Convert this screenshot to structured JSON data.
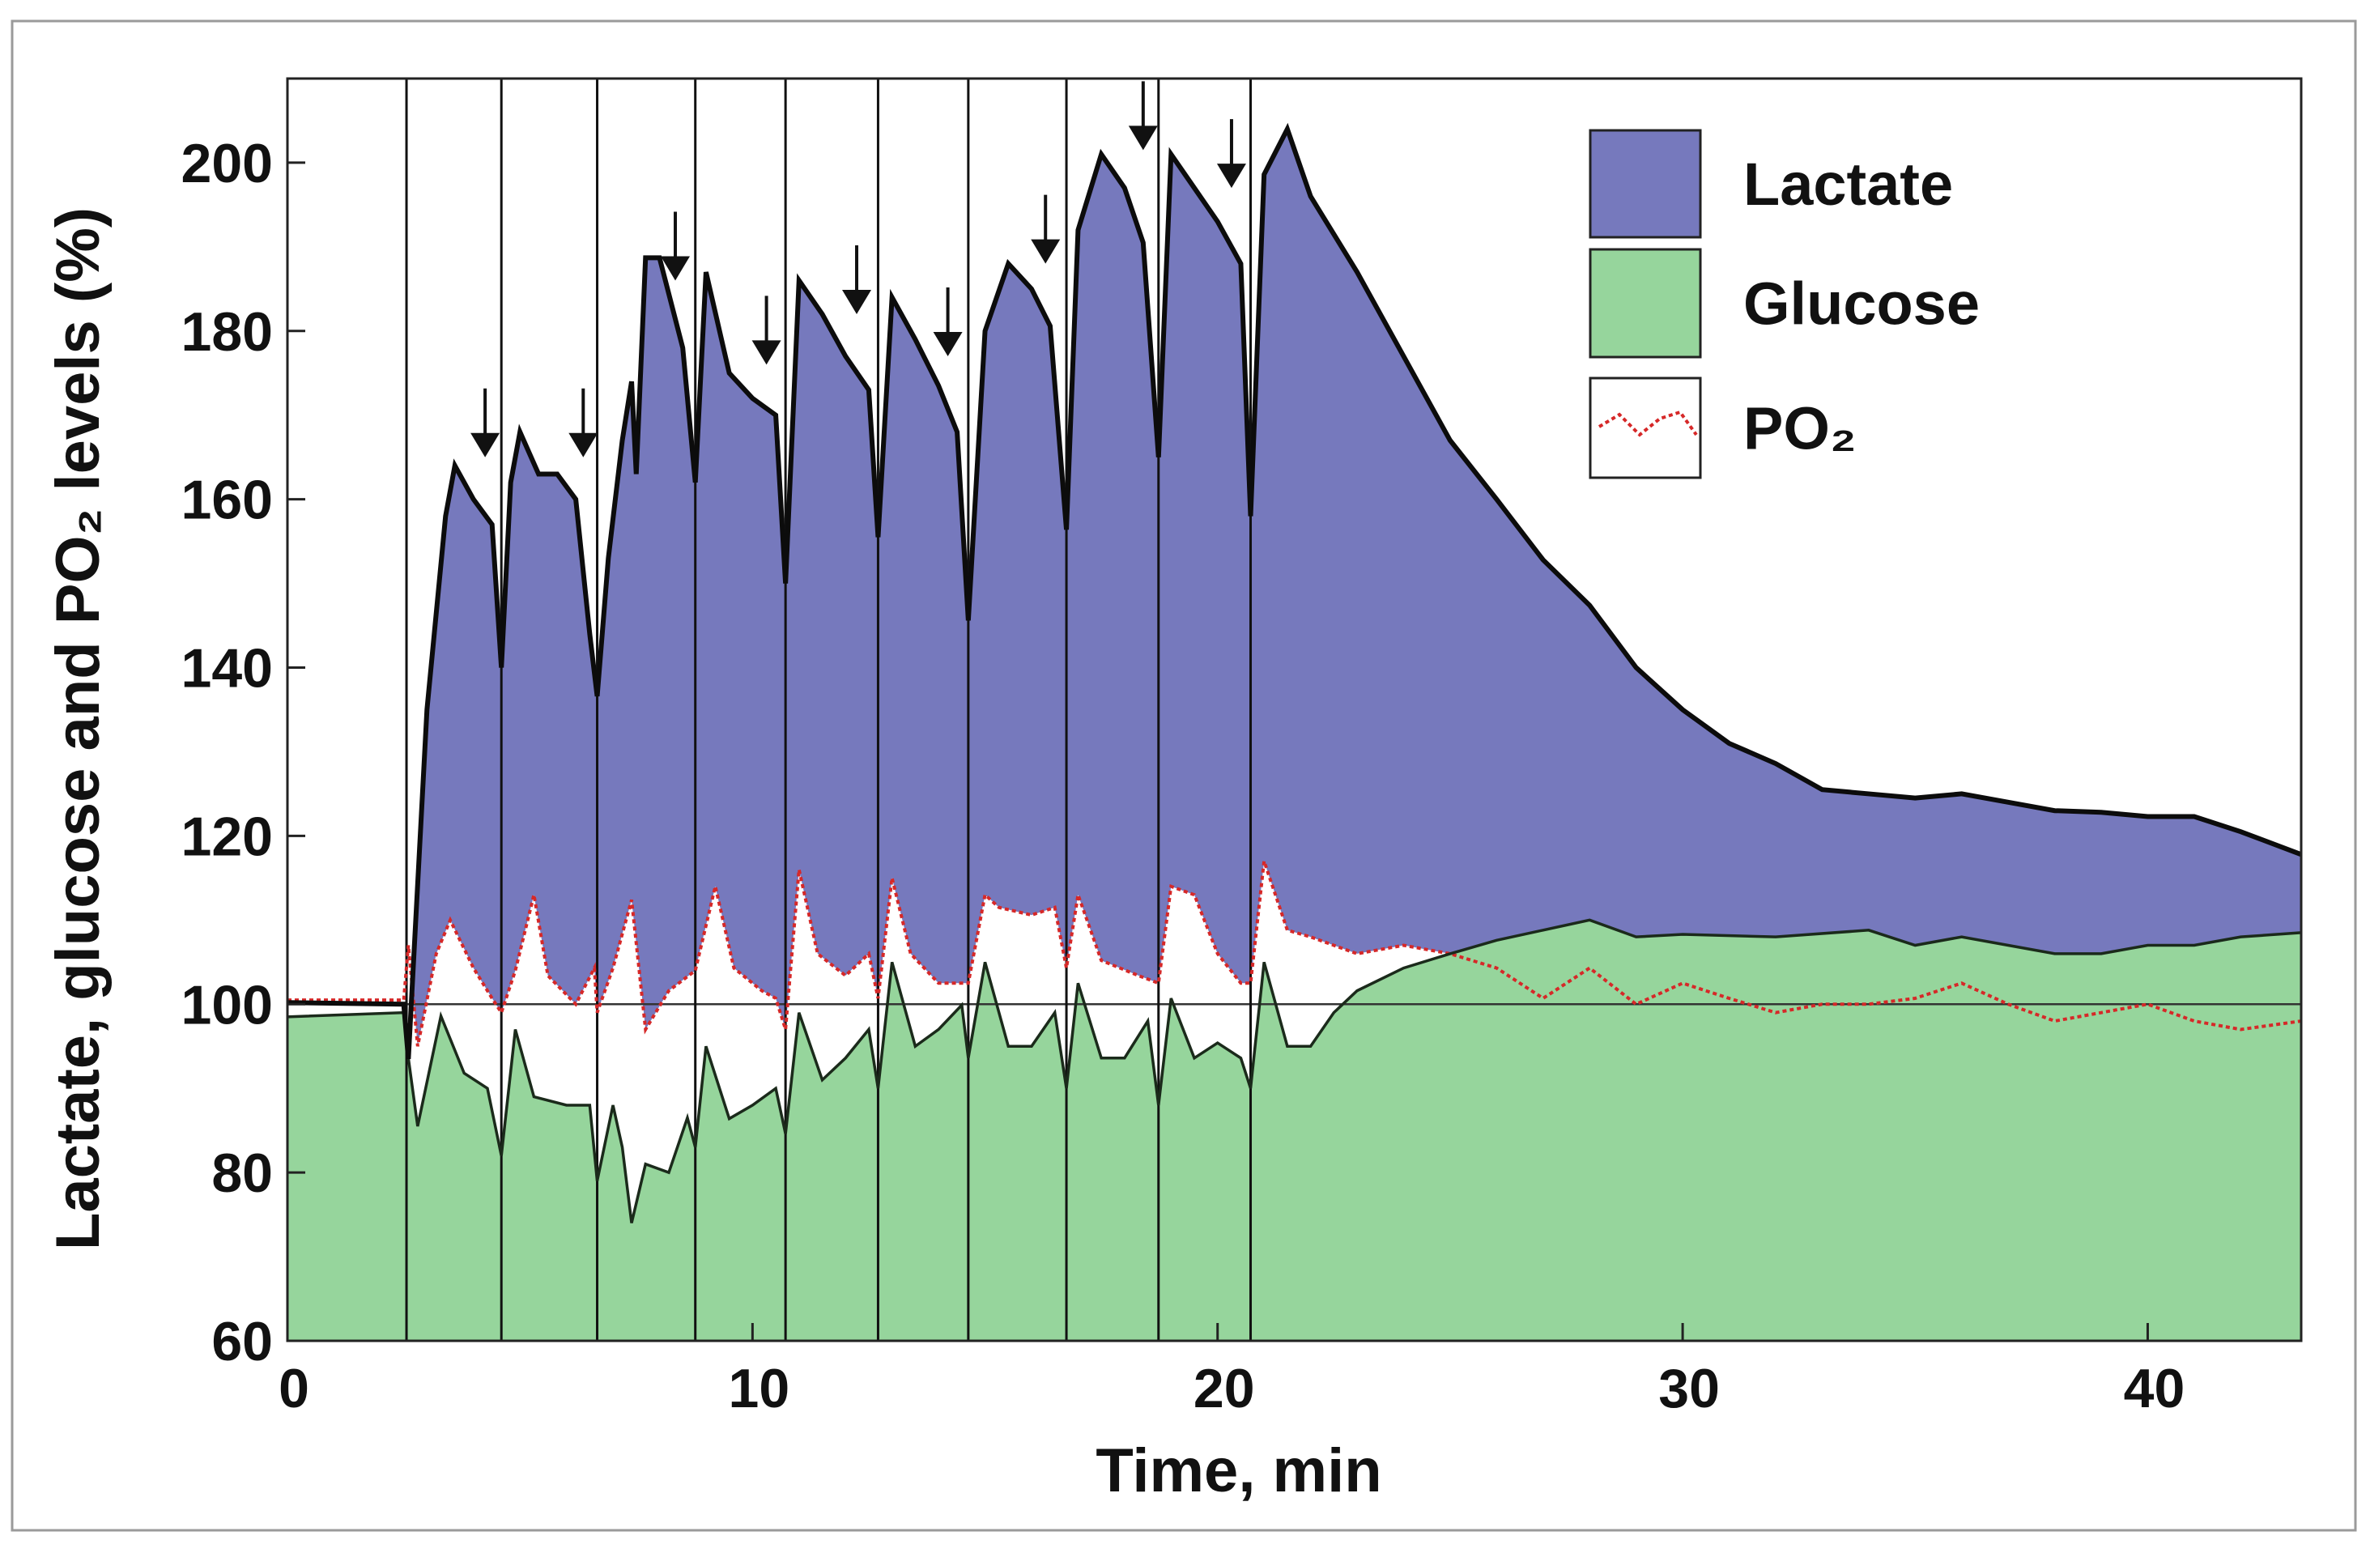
{
  "chart_data": {
    "type": "area",
    "title": "",
    "xlabel": "Time, min",
    "ylabel": "Lactate, glucose and PO₂ levels (%)",
    "xlim": [
      0,
      43.3
    ],
    "ylim": [
      60,
      210
    ],
    "xticks": [
      0,
      10,
      20,
      30,
      40
    ],
    "yticks": [
      60,
      80,
      100,
      120,
      140,
      160,
      180,
      200
    ],
    "reference_line": 100,
    "legend_position": "top-right",
    "colors": {
      "lactate": "#7679bd",
      "glucose": "#96d59c",
      "po2": "#d62828",
      "events": "#111111"
    },
    "legend": [
      {
        "key": "lactate",
        "label": "Lactate"
      },
      {
        "key": "glucose",
        "label": "Glucose"
      },
      {
        "key": "po2",
        "label": "PO₂"
      }
    ],
    "event_lines_min": [
      2.56,
      4.6,
      6.66,
      8.77,
      10.71,
      12.7,
      14.64,
      16.75,
      18.73,
      20.71
    ],
    "arrows": [
      {
        "x": 4.25,
        "y": 165
      },
      {
        "x": 6.36,
        "y": 165
      },
      {
        "x": 8.34,
        "y": 186
      },
      {
        "x": 10.3,
        "y": 176
      },
      {
        "x": 12.24,
        "y": 182
      },
      {
        "x": 14.2,
        "y": 177
      },
      {
        "x": 16.3,
        "y": 188
      },
      {
        "x": 18.4,
        "y": 201.5
      },
      {
        "x": 20.3,
        "y": 197
      }
    ],
    "series": [
      {
        "name": "Lactate",
        "key": "lactate",
        "points": [
          [
            0,
            100.2
          ],
          [
            2.5,
            100
          ],
          [
            2.6,
            93.5
          ],
          [
            3.0,
            135
          ],
          [
            3.4,
            158
          ],
          [
            3.6,
            164
          ],
          [
            4.0,
            160
          ],
          [
            4.4,
            157
          ],
          [
            4.6,
            140
          ],
          [
            4.8,
            162
          ],
          [
            5.0,
            168
          ],
          [
            5.4,
            163
          ],
          [
            5.8,
            163
          ],
          [
            6.2,
            160
          ],
          [
            6.5,
            144
          ],
          [
            6.66,
            136.6
          ],
          [
            6.9,
            153
          ],
          [
            7.2,
            167
          ],
          [
            7.4,
            174
          ],
          [
            7.5,
            163
          ],
          [
            7.7,
            188.7
          ],
          [
            8.0,
            188.7
          ],
          [
            8.5,
            178
          ],
          [
            8.77,
            162
          ],
          [
            9.0,
            187
          ],
          [
            9.5,
            175
          ],
          [
            10.0,
            172
          ],
          [
            10.5,
            170
          ],
          [
            10.71,
            150
          ],
          [
            11.0,
            186
          ],
          [
            11.5,
            182
          ],
          [
            12.0,
            177
          ],
          [
            12.5,
            173
          ],
          [
            12.7,
            155.5
          ],
          [
            13.0,
            184
          ],
          [
            13.5,
            179
          ],
          [
            14.0,
            173.5
          ],
          [
            14.4,
            168
          ],
          [
            14.64,
            145.6
          ],
          [
            15.0,
            180
          ],
          [
            15.5,
            188
          ],
          [
            16.0,
            185
          ],
          [
            16.4,
            180.6
          ],
          [
            16.75,
            156.4
          ],
          [
            17.0,
            192
          ],
          [
            17.5,
            201
          ],
          [
            18.0,
            197
          ],
          [
            18.4,
            190.5
          ],
          [
            18.73,
            165
          ],
          [
            19.0,
            201
          ],
          [
            19.5,
            197
          ],
          [
            20.0,
            193
          ],
          [
            20.5,
            188
          ],
          [
            20.71,
            158
          ],
          [
            21.0,
            198.6
          ],
          [
            21.5,
            204
          ],
          [
            22,
            196
          ],
          [
            23,
            187
          ],
          [
            24,
            177
          ],
          [
            25,
            167
          ],
          [
            26,
            160
          ],
          [
            27,
            152.8
          ],
          [
            28,
            147.4
          ],
          [
            29,
            140
          ],
          [
            30,
            135
          ],
          [
            31,
            131
          ],
          [
            32,
            128.6
          ],
          [
            33,
            125.5
          ],
          [
            34,
            125
          ],
          [
            35,
            124.5
          ],
          [
            36,
            125
          ],
          [
            37,
            124
          ],
          [
            38,
            123
          ],
          [
            39,
            122.8
          ],
          [
            40,
            122.3
          ],
          [
            41,
            122.3
          ],
          [
            42,
            120.5
          ],
          [
            43.3,
            117.8
          ]
        ]
      },
      {
        "name": "Glucose",
        "key": "glucose",
        "points": [
          [
            0,
            98.5
          ],
          [
            2.5,
            99
          ],
          [
            2.6,
            93.6
          ],
          [
            2.8,
            85.5
          ],
          [
            3.3,
            98.6
          ],
          [
            3.8,
            91.8
          ],
          [
            4.3,
            90
          ],
          [
            4.6,
            82
          ],
          [
            4.9,
            97
          ],
          [
            5.3,
            89
          ],
          [
            6.0,
            88
          ],
          [
            6.5,
            88
          ],
          [
            6.66,
            79
          ],
          [
            7.0,
            88
          ],
          [
            7.2,
            83
          ],
          [
            7.4,
            74
          ],
          [
            7.7,
            81
          ],
          [
            8.2,
            80
          ],
          [
            8.6,
            86.5
          ],
          [
            8.77,
            83
          ],
          [
            9.0,
            95
          ],
          [
            9.5,
            86.4
          ],
          [
            10.0,
            88
          ],
          [
            10.5,
            90
          ],
          [
            10.71,
            84.6
          ],
          [
            11.0,
            99
          ],
          [
            11.5,
            91
          ],
          [
            12.0,
            93.6
          ],
          [
            12.5,
            97
          ],
          [
            12.7,
            90
          ],
          [
            13.0,
            105
          ],
          [
            13.5,
            95
          ],
          [
            14.0,
            97
          ],
          [
            14.5,
            99.9
          ],
          [
            14.64,
            93.6
          ],
          [
            15.0,
            105
          ],
          [
            15.5,
            95
          ],
          [
            16.0,
            95
          ],
          [
            16.5,
            99
          ],
          [
            16.75,
            90
          ],
          [
            17.0,
            102.5
          ],
          [
            17.5,
            93.6
          ],
          [
            18.0,
            93.6
          ],
          [
            18.5,
            98
          ],
          [
            18.73,
            88
          ],
          [
            19.0,
            100.7
          ],
          [
            19.5,
            93.6
          ],
          [
            20.0,
            95.4
          ],
          [
            20.5,
            93.6
          ],
          [
            20.71,
            90
          ],
          [
            21.0,
            105
          ],
          [
            21.5,
            95
          ],
          [
            22,
            95
          ],
          [
            22.5,
            99
          ],
          [
            23,
            101.6
          ],
          [
            24,
            104.3
          ],
          [
            25,
            106
          ],
          [
            26,
            107.6
          ],
          [
            27,
            108.8
          ],
          [
            28,
            110
          ],
          [
            29,
            108
          ],
          [
            30,
            108.3
          ],
          [
            32,
            108
          ],
          [
            34,
            108.8
          ],
          [
            35,
            107
          ],
          [
            36,
            108
          ],
          [
            37,
            107
          ],
          [
            38,
            106
          ],
          [
            39,
            106
          ],
          [
            40,
            107
          ],
          [
            41,
            107
          ],
          [
            42,
            108
          ],
          [
            43.3,
            108.5
          ]
        ]
      },
      {
        "name": "PO₂",
        "key": "po2",
        "points": [
          [
            0,
            100.5
          ],
          [
            2.5,
            100.5
          ],
          [
            2.6,
            107
          ],
          [
            2.8,
            95
          ],
          [
            3.2,
            106
          ],
          [
            3.5,
            110
          ],
          [
            4.0,
            104.3
          ],
          [
            4.4,
            100.7
          ],
          [
            4.6,
            99
          ],
          [
            4.9,
            104
          ],
          [
            5.3,
            113
          ],
          [
            5.6,
            103.4
          ],
          [
            6.2,
            100
          ],
          [
            6.6,
            104.3
          ],
          [
            6.66,
            99
          ],
          [
            7.0,
            104.3
          ],
          [
            7.4,
            112.4
          ],
          [
            7.7,
            97
          ],
          [
            8.2,
            101.6
          ],
          [
            8.77,
            104
          ],
          [
            9.2,
            114
          ],
          [
            9.6,
            104.3
          ],
          [
            10.2,
            101.6
          ],
          [
            10.5,
            100.7
          ],
          [
            10.71,
            97
          ],
          [
            11.0,
            116
          ],
          [
            11.4,
            106
          ],
          [
            12.0,
            103.4
          ],
          [
            12.5,
            106
          ],
          [
            12.7,
            100.7
          ],
          [
            13.0,
            115
          ],
          [
            13.4,
            106
          ],
          [
            14.0,
            102.5
          ],
          [
            14.64,
            102.5
          ],
          [
            15.0,
            113
          ],
          [
            15.3,
            111.5
          ],
          [
            16.0,
            110.6
          ],
          [
            16.5,
            111.5
          ],
          [
            16.75,
            104.3
          ],
          [
            17.0,
            113
          ],
          [
            17.5,
            105.2
          ],
          [
            18.3,
            103.4
          ],
          [
            18.73,
            102.5
          ],
          [
            19.0,
            114
          ],
          [
            19.5,
            113
          ],
          [
            20.0,
            106
          ],
          [
            20.5,
            102.5
          ],
          [
            20.71,
            102.5
          ],
          [
            21.0,
            117
          ],
          [
            21.5,
            108.8
          ],
          [
            22,
            108
          ],
          [
            23,
            106
          ],
          [
            24,
            107
          ],
          [
            25,
            106
          ],
          [
            26,
            104.3
          ],
          [
            27,
            100.7
          ],
          [
            28,
            104.3
          ],
          [
            29,
            100
          ],
          [
            30,
            102.5
          ],
          [
            31,
            100.7
          ],
          [
            32,
            99
          ],
          [
            33,
            100
          ],
          [
            34,
            100
          ],
          [
            35,
            100.7
          ],
          [
            36,
            102.5
          ],
          [
            37,
            100
          ],
          [
            38,
            98
          ],
          [
            39,
            99
          ],
          [
            40,
            100
          ],
          [
            41,
            98
          ],
          [
            42,
            97
          ],
          [
            43.3,
            98
          ]
        ]
      }
    ]
  }
}
